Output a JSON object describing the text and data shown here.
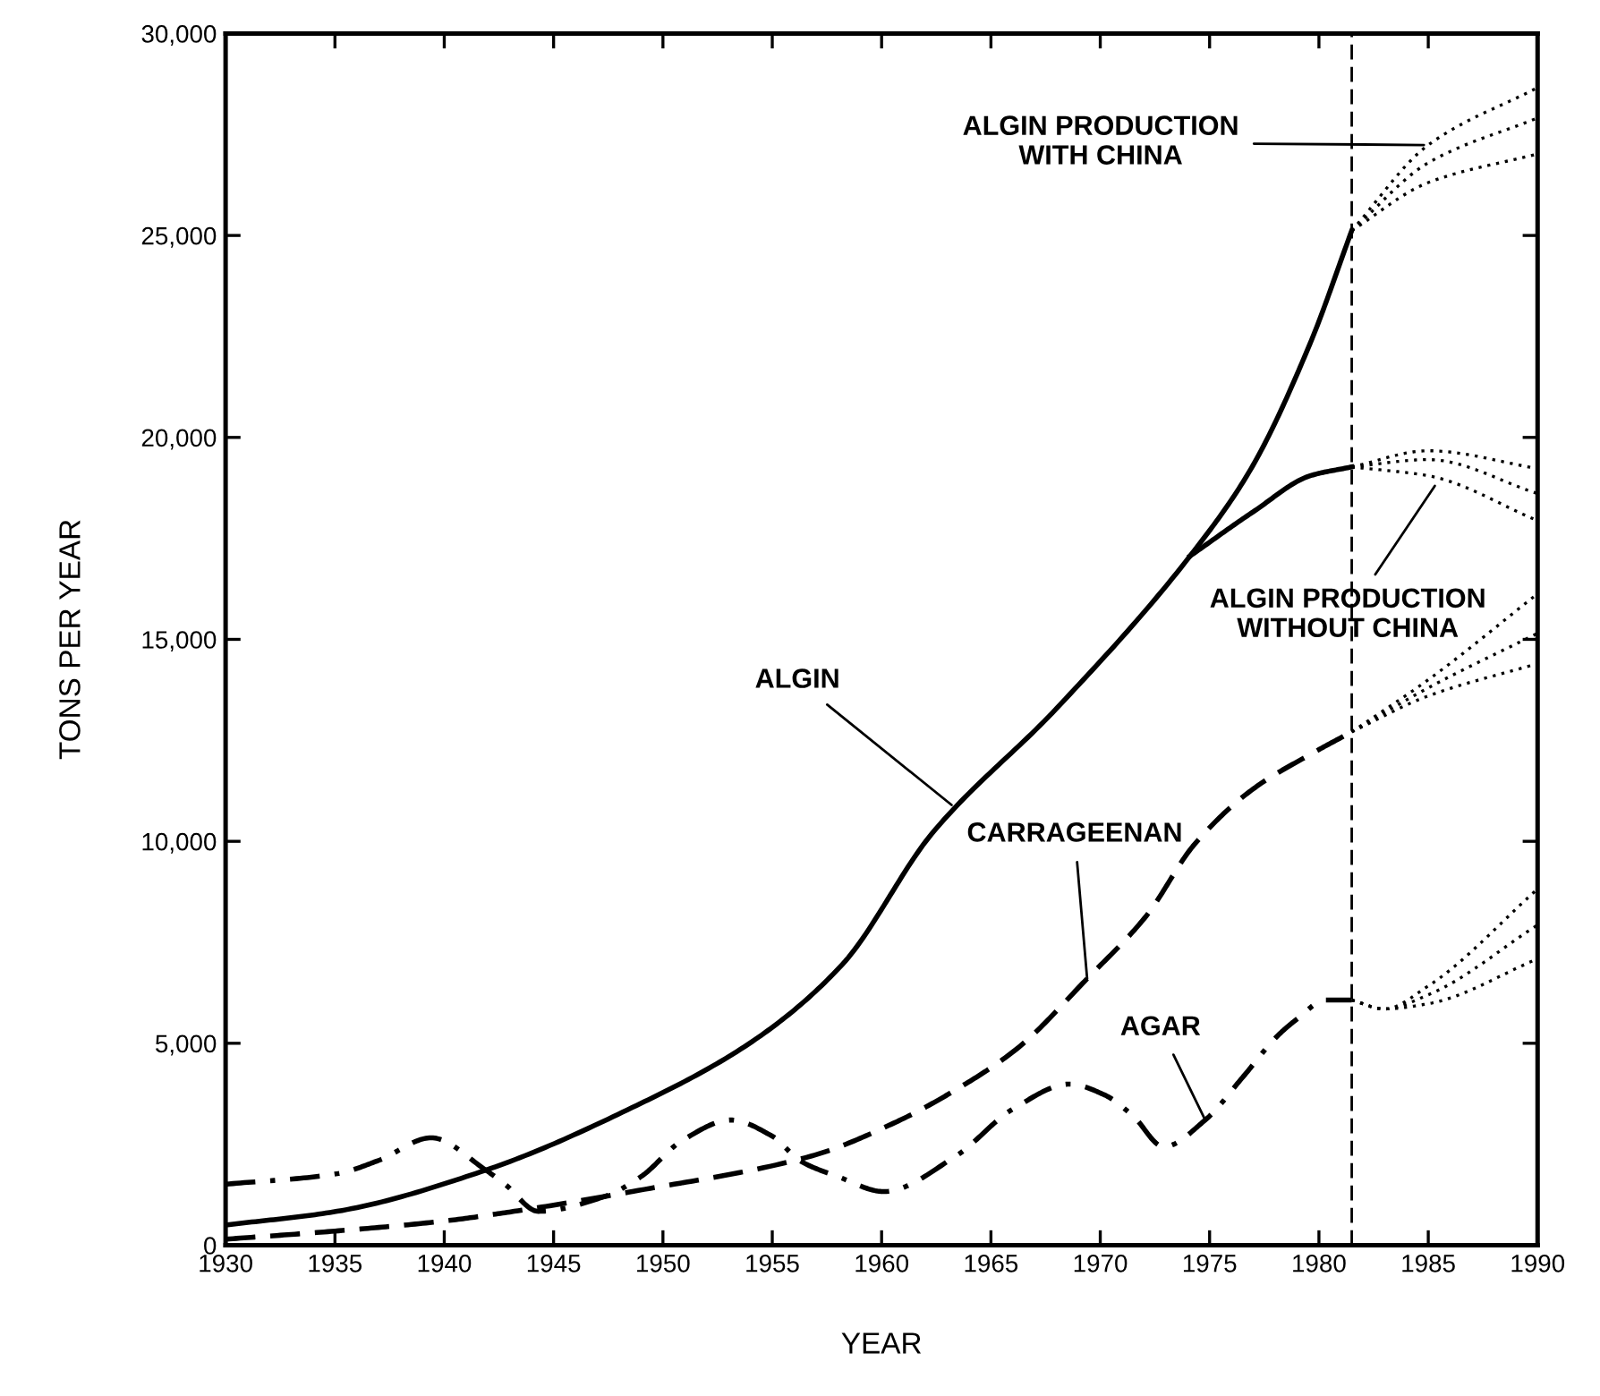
{
  "chart_data": {
    "type": "line",
    "xlabel": "YEAR",
    "ylabel": "TONS PER YEAR",
    "xlim": [
      1930,
      1990
    ],
    "xticks": [
      1930,
      1935,
      1940,
      1945,
      1950,
      1955,
      1960,
      1965,
      1970,
      1975,
      1980,
      1985,
      1990
    ],
    "ylim": [
      0,
      30000
    ],
    "yticks": [
      0,
      {
        "value": 5000,
        "label": "5,000"
      },
      {
        "value": 10000,
        "label": "10,000"
      },
      {
        "value": 15000,
        "label": "15,000"
      },
      {
        "value": 20000,
        "label": "20,000"
      },
      {
        "value": 25000,
        "label": "25,000"
      },
      {
        "value": 30000,
        "label": "30,000"
      }
    ],
    "grid": false,
    "marker": "none",
    "series": [
      {
        "color": "#000000",
        "line_style": "solid",
        "x": [
          1930,
          1935.1,
          1941.9,
          1948.6,
          1954.1,
          1958.2,
          1962.3,
          1968.0,
          1974.1,
          1976.9,
          1979.6,
          1981.5
        ],
        "values": [
          500,
          840,
          1860,
          3410,
          5050,
          6950,
          10190,
          13290,
          17060,
          19230,
          22330,
          25120
        ]
      },
      {
        "color": "#000000",
        "line_style": "solid",
        "x": [
          1974.1,
          1977.0,
          1979.6,
          1981.5
        ],
        "values": [
          17060,
          18160,
          19050,
          19270
        ]
      },
      {
        "color": "#000000",
        "line_style": "dotted",
        "x": [
          1981.5,
          1985,
          1990
        ],
        "values": [
          25120,
          27240,
          28660
        ]
      },
      {
        "color": "#000000",
        "line_style": "dotted",
        "x": [
          1981.5,
          1985,
          1990
        ],
        "values": [
          25120,
          26800,
          27910
        ]
      },
      {
        "color": "#000000",
        "line_style": "dotted",
        "x": [
          1981.5,
          1985,
          1990
        ],
        "values": [
          25120,
          26310,
          27020
        ]
      },
      {
        "color": "#000000",
        "line_style": "dotted",
        "x": [
          1981.5,
          1985,
          1990
        ],
        "values": [
          19270,
          19670,
          19230
        ]
      },
      {
        "color": "#000000",
        "line_style": "dotted",
        "x": [
          1981.5,
          1985,
          1990
        ],
        "values": [
          19270,
          19450,
          18610
        ]
      },
      {
        "color": "#000000",
        "line_style": "dotted",
        "x": [
          1981.5,
          1985,
          1990
        ],
        "values": [
          19270,
          19050,
          17940
        ]
      },
      {
        "color": "#000000",
        "line_style": "dashed",
        "x": [
          1930,
          1935,
          1940,
          1943.2,
          1948.6,
          1956.8,
          1960.7,
          1963.4,
          1966.2,
          1969.4,
          1972.1,
          1974.3,
          1977.0,
          1979.7,
          1981.5
        ],
        "values": [
          150,
          350,
          600,
          840,
          1330,
          2210,
          3060,
          3850,
          4870,
          6600,
          8150,
          9920,
          11300,
          12180,
          12710
        ]
      },
      {
        "color": "#000000",
        "line_style": "dotted",
        "x": [
          1981.5,
          1985,
          1990
        ],
        "values": [
          12710,
          14000,
          16130
        ]
      },
      {
        "color": "#000000",
        "line_style": "dotted",
        "x": [
          1981.5,
          1985,
          1990
        ],
        "values": [
          12710,
          13800,
          15150
        ]
      },
      {
        "color": "#000000",
        "line_style": "dotted",
        "x": [
          1981.5,
          1985,
          1990
        ],
        "values": [
          12710,
          13600,
          14400
        ]
      },
      {
        "color": "#000000",
        "line_style": "dashdot",
        "x": [
          1930,
          1935.1,
          1937,
          1939.4,
          1941.9,
          1942.8,
          1944.3,
          1947.3,
          1949,
          1950.9,
          1953.1,
          1955,
          1956.3,
          1958,
          1960.1,
          1963.4,
          1966,
          1968.6,
          1970.2,
          1971.5,
          1972.9,
          1974.8,
          1976.5,
          1978.1,
          1979,
          1980.3,
          1981.5
        ],
        "values": [
          1510,
          1770,
          2100,
          2660,
          1860,
          1500,
          840,
          1200,
          1700,
          2600,
          3100,
          2700,
          2080,
          1700,
          1330,
          2210,
          3370,
          3990,
          3720,
          3200,
          2440,
          3100,
          4150,
          5180,
          5600,
          6070,
          6070
        ]
      },
      {
        "color": "#000000",
        "line_style": "dotted",
        "x": [
          1981.5,
          1983,
          1985,
          1990
        ],
        "values": [
          6070,
          5850,
          6420,
          8820
        ]
      },
      {
        "color": "#000000",
        "line_style": "dotted",
        "x": [
          1981.5,
          1983,
          1985,
          1990
        ],
        "values": [
          6070,
          5850,
          6200,
          7930
        ]
      },
      {
        "color": "#000000",
        "line_style": "dotted",
        "x": [
          1981.5,
          1983,
          1985,
          1990
        ],
        "values": [
          6070,
          5850,
          5980,
          7090
        ]
      }
    ],
    "ref_lines": [
      {
        "axis": "x",
        "value": 1981.5,
        "line_style": "dashed",
        "color": "#000000"
      }
    ],
    "annotations": [
      {
        "text": "ALGIN",
        "x": 1963.2,
        "y": 10900
      },
      {
        "text": "CARRAGEENAN",
        "x": 1969.4,
        "y": 6600
      },
      {
        "text": "AGAR",
        "x": 1974.8,
        "y": 3100
      },
      {
        "text": "ALGIN PRODUCTION\nWITH CHINA",
        "x": 1984.8,
        "y": 27240
      },
      {
        "text": "ALGIN PRODUCTION\nWITHOUT CHINA",
        "x": 1985.3,
        "y": 18800
      }
    ]
  }
}
